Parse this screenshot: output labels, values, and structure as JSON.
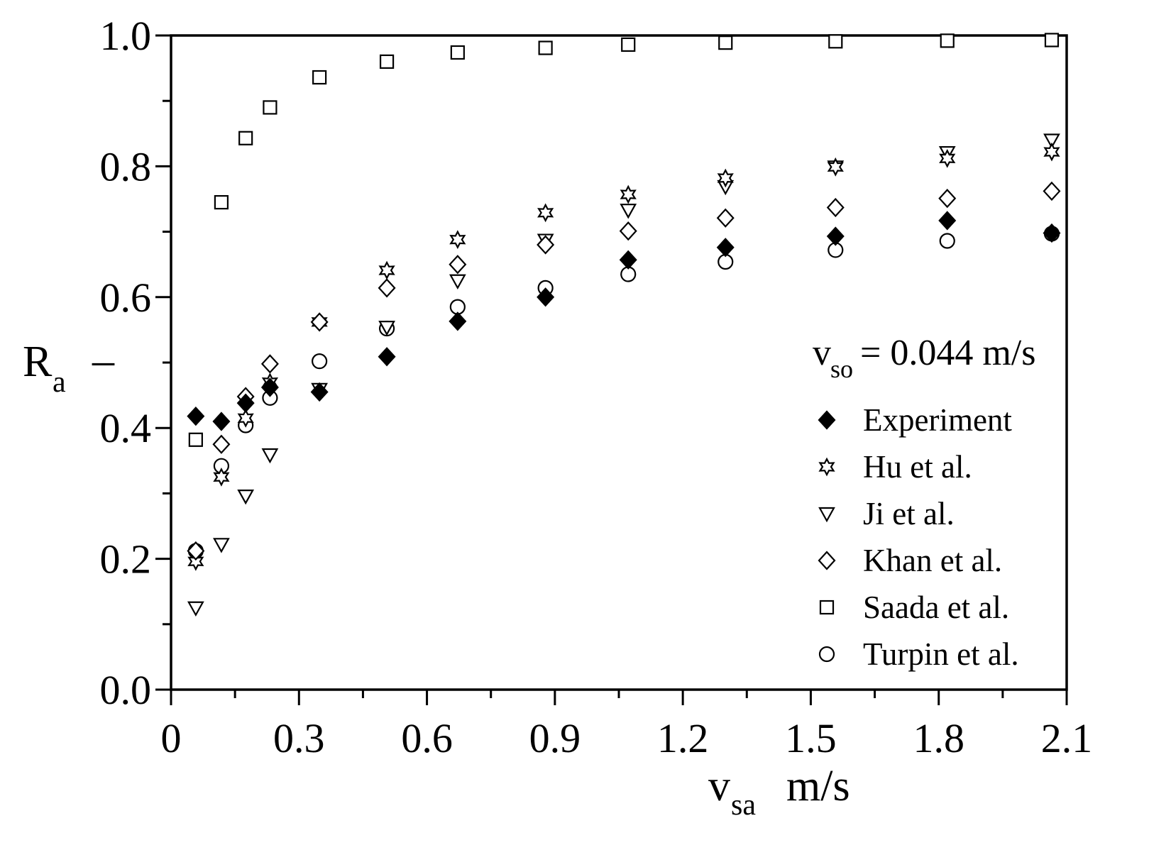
{
  "chart_data": {
    "type": "scatter",
    "title": "",
    "xlabel": {
      "main": "v",
      "sub": "sa",
      "unit": "m/s"
    },
    "ylabel": {
      "main": "R",
      "sub": "a",
      "unit": "–"
    },
    "xlim": [
      0,
      2.1
    ],
    "ylim": [
      0,
      1.0
    ],
    "xticks": [
      0,
      0.3,
      0.6,
      0.9,
      1.2,
      1.5,
      1.8,
      2.1
    ],
    "xtick_labels": [
      "0",
      "0.3",
      "0.6",
      "0.9",
      "1.2",
      "1.5",
      "1.8",
      "2.1"
    ],
    "yticks": [
      0,
      0.2,
      0.4,
      0.6,
      0.8,
      1.0
    ],
    "ytick_labels": [
      "0.0",
      "0.2",
      "0.4",
      "0.6",
      "0.8",
      "1.0"
    ],
    "grid": false,
    "legend_position": "right",
    "annotation": {
      "main": "v",
      "sub": "so",
      "rest": " = 0.044 m/s"
    },
    "x": [
      0.058,
      0.118,
      0.175,
      0.232,
      0.348,
      0.506,
      0.672,
      0.878,
      1.072,
      1.3,
      1.558,
      1.82,
      2.065
    ],
    "series": [
      {
        "name": "Experiment",
        "marker": "diamond-filled",
        "values": [
          0.418,
          0.41,
          0.438,
          0.462,
          0.455,
          0.509,
          0.563,
          0.6,
          0.657,
          0.676,
          0.693,
          0.717,
          0.698
        ]
      },
      {
        "name": "Hu et al.",
        "marker": "star6",
        "values": [
          0.196,
          0.325,
          0.415,
          0.47,
          0.562,
          0.641,
          0.688,
          0.729,
          0.757,
          0.782,
          0.799,
          0.812,
          0.822
        ]
      },
      {
        "name": "Ji et al.",
        "marker": "triangle-down",
        "values": [
          0.125,
          0.222,
          0.296,
          0.359,
          0.459,
          0.554,
          0.625,
          0.687,
          0.733,
          0.769,
          0.799,
          0.821,
          0.84
        ]
      },
      {
        "name": "Khan et al.",
        "marker": "diamond-open",
        "values": [
          0.212,
          0.375,
          0.448,
          0.498,
          0.562,
          0.614,
          0.65,
          0.68,
          0.701,
          0.721,
          0.737,
          0.751,
          0.762
        ]
      },
      {
        "name": "Saada et al.",
        "marker": "square-open",
        "values": [
          0.382,
          0.745,
          0.843,
          0.89,
          0.936,
          0.96,
          0.974,
          0.981,
          0.986,
          0.989,
          0.991,
          0.992,
          0.993
        ]
      },
      {
        "name": "Turpin et al.",
        "marker": "circle-open",
        "values": [
          0.212,
          0.342,
          0.404,
          0.446,
          0.502,
          0.552,
          0.585,
          0.614,
          0.635,
          0.654,
          0.672,
          0.686,
          0.697
        ]
      }
    ]
  }
}
